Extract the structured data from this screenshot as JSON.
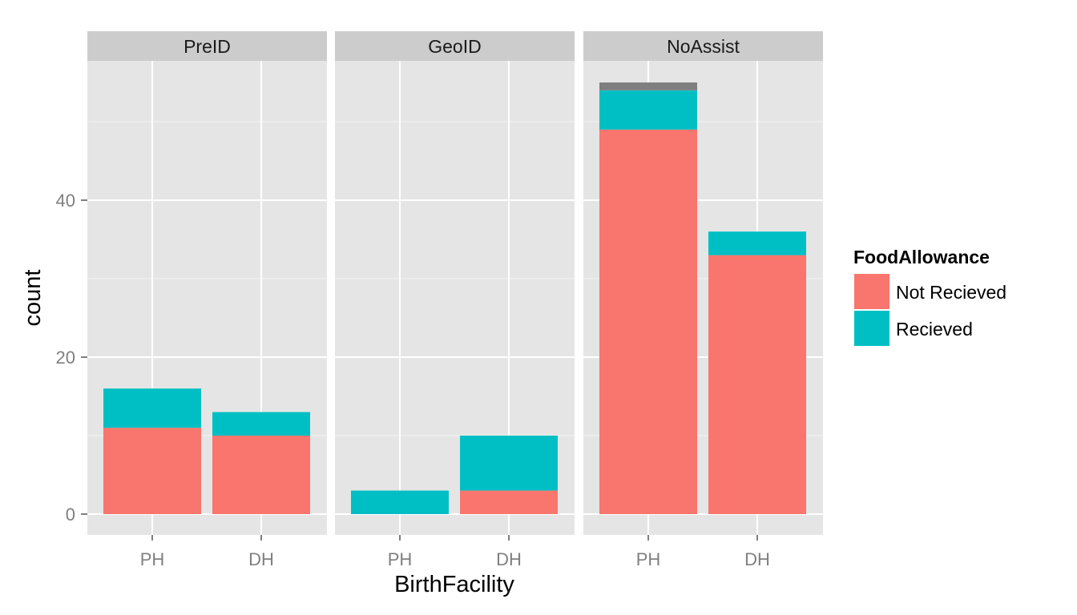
{
  "chart_data": {
    "type": "bar",
    "stacked": true,
    "facet_by": "Assistance",
    "x": "BirthFacility",
    "xlabel": "BirthFacility",
    "ylabel": "count",
    "categories": [
      "PH",
      "DH"
    ],
    "ylim": [
      0,
      57
    ],
    "yticks": [
      0,
      20,
      40
    ],
    "grid": true,
    "legend": {
      "title": "FoodAllowance",
      "position": "right",
      "entries": [
        {
          "label": "Not Recieved",
          "color": "#F8766D"
        },
        {
          "label": "Recieved",
          "color": "#00BFC4"
        }
      ]
    },
    "na_color": "#7F7F7F",
    "panels": [
      {
        "name": "PreID",
        "series": [
          {
            "name": "Not Recieved",
            "values": [
              11,
              10
            ]
          },
          {
            "name": "Recieved",
            "values": [
              5,
              3
            ]
          },
          {
            "name": "NA",
            "values": [
              0,
              0
            ]
          }
        ]
      },
      {
        "name": "GeoID",
        "series": [
          {
            "name": "Not Recieved",
            "values": [
              0,
              3
            ]
          },
          {
            "name": "Recieved",
            "values": [
              3,
              7
            ]
          },
          {
            "name": "NA",
            "values": [
              0,
              0
            ]
          }
        ]
      },
      {
        "name": "NoAssist",
        "series": [
          {
            "name": "Not Recieved",
            "values": [
              49,
              33
            ]
          },
          {
            "name": "Recieved",
            "values": [
              5,
              3
            ]
          },
          {
            "name": "NA",
            "values": [
              1,
              0
            ]
          }
        ]
      }
    ]
  }
}
